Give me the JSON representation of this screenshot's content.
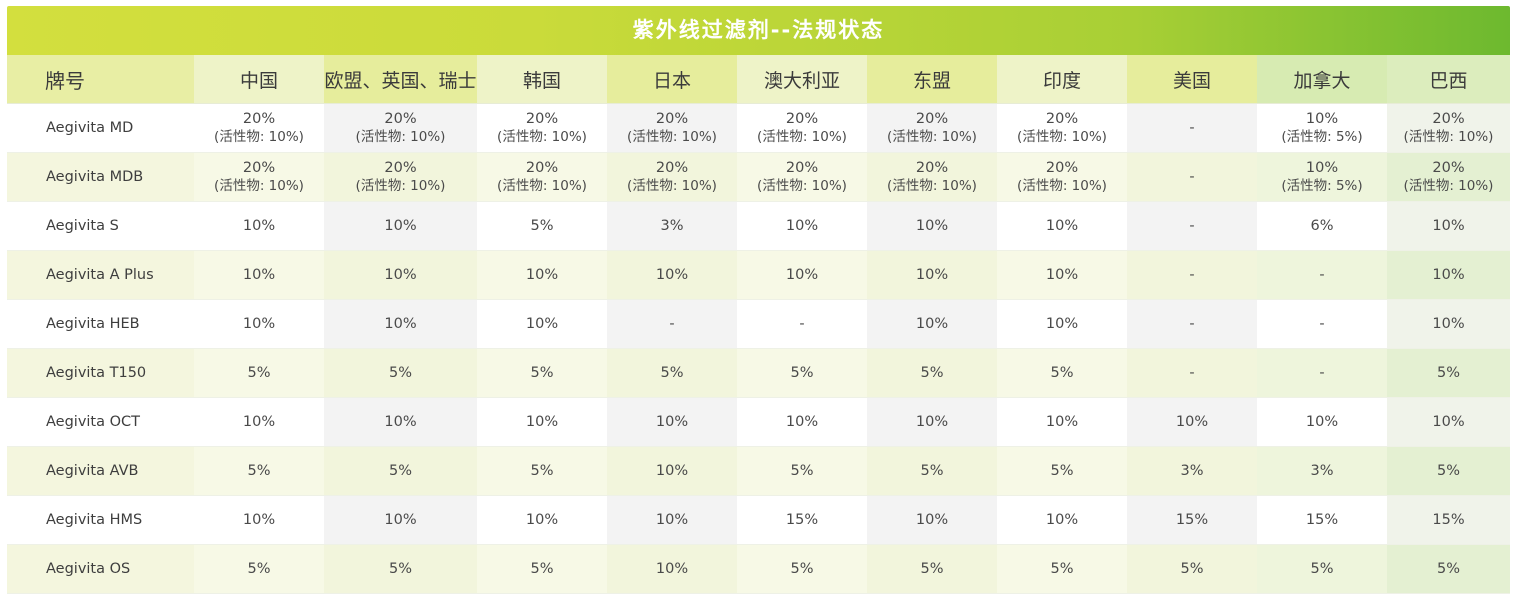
{
  "title": "紫外线过滤剂--法规状态",
  "columns": [
    "牌号",
    "中国",
    "欧盟、英国、瑞士",
    "韩国",
    "日本",
    "澳大利亚",
    "东盟",
    "印度",
    "美国",
    "加拿大",
    "巴西"
  ],
  "rows": [
    {
      "brand": "Aegivita MD",
      "cells": [
        {
          "v": "20%",
          "s": "(活性物: 10%)"
        },
        {
          "v": "20%",
          "s": "(活性物: 10%)"
        },
        {
          "v": "20%",
          "s": "(活性物: 10%)"
        },
        {
          "v": "20%",
          "s": "(活性物: 10%)"
        },
        {
          "v": "20%",
          "s": "(活性物: 10%)"
        },
        {
          "v": "20%",
          "s": "(活性物: 10%)"
        },
        {
          "v": "20%",
          "s": "(活性物: 10%)"
        },
        {
          "v": "-",
          "s": ""
        },
        {
          "v": "10%",
          "s": "(活性物: 5%)"
        },
        {
          "v": "20%",
          "s": "(活性物: 10%)"
        }
      ]
    },
    {
      "brand": "Aegivita MDB",
      "cells": [
        {
          "v": "20%",
          "s": "(活性物: 10%)"
        },
        {
          "v": "20%",
          "s": "(活性物: 10%)"
        },
        {
          "v": "20%",
          "s": "(活性物: 10%)"
        },
        {
          "v": "20%",
          "s": "(活性物: 10%)"
        },
        {
          "v": "20%",
          "s": "(活性物: 10%)"
        },
        {
          "v": "20%",
          "s": "(活性物: 10%)"
        },
        {
          "v": "20%",
          "s": "(活性物: 10%)"
        },
        {
          "v": "-",
          "s": ""
        },
        {
          "v": "10%",
          "s": "(活性物: 5%)"
        },
        {
          "v": "20%",
          "s": "(活性物: 10%)"
        }
      ]
    },
    {
      "brand": "Aegivita S",
      "cells": [
        {
          "v": "10%",
          "s": ""
        },
        {
          "v": "10%",
          "s": ""
        },
        {
          "v": "5%",
          "s": ""
        },
        {
          "v": "3%",
          "s": ""
        },
        {
          "v": "10%",
          "s": ""
        },
        {
          "v": "10%",
          "s": ""
        },
        {
          "v": "10%",
          "s": ""
        },
        {
          "v": "-",
          "s": ""
        },
        {
          "v": "6%",
          "s": ""
        },
        {
          "v": "10%",
          "s": ""
        }
      ]
    },
    {
      "brand": "Aegivita A Plus",
      "cells": [
        {
          "v": "10%",
          "s": ""
        },
        {
          "v": "10%",
          "s": ""
        },
        {
          "v": "10%",
          "s": ""
        },
        {
          "v": "10%",
          "s": ""
        },
        {
          "v": "10%",
          "s": ""
        },
        {
          "v": "10%",
          "s": ""
        },
        {
          "v": "10%",
          "s": ""
        },
        {
          "v": "-",
          "s": ""
        },
        {
          "v": "-",
          "s": ""
        },
        {
          "v": "10%",
          "s": ""
        }
      ]
    },
    {
      "brand": "Aegivita HEB",
      "cells": [
        {
          "v": "10%",
          "s": ""
        },
        {
          "v": "10%",
          "s": ""
        },
        {
          "v": "10%",
          "s": ""
        },
        {
          "v": "-",
          "s": ""
        },
        {
          "v": "-",
          "s": ""
        },
        {
          "v": "10%",
          "s": ""
        },
        {
          "v": "10%",
          "s": ""
        },
        {
          "v": "-",
          "s": ""
        },
        {
          "v": "-",
          "s": ""
        },
        {
          "v": "10%",
          "s": ""
        }
      ]
    },
    {
      "brand": "Aegivita T150",
      "cells": [
        {
          "v": "5%",
          "s": ""
        },
        {
          "v": "5%",
          "s": ""
        },
        {
          "v": "5%",
          "s": ""
        },
        {
          "v": "5%",
          "s": ""
        },
        {
          "v": "5%",
          "s": ""
        },
        {
          "v": "5%",
          "s": ""
        },
        {
          "v": "5%",
          "s": ""
        },
        {
          "v": "-",
          "s": ""
        },
        {
          "v": "-",
          "s": ""
        },
        {
          "v": "5%",
          "s": ""
        }
      ]
    },
    {
      "brand": "Aegivita OCT",
      "cells": [
        {
          "v": "10%",
          "s": ""
        },
        {
          "v": "10%",
          "s": ""
        },
        {
          "v": "10%",
          "s": ""
        },
        {
          "v": "10%",
          "s": ""
        },
        {
          "v": "10%",
          "s": ""
        },
        {
          "v": "10%",
          "s": ""
        },
        {
          "v": "10%",
          "s": ""
        },
        {
          "v": "10%",
          "s": ""
        },
        {
          "v": "10%",
          "s": ""
        },
        {
          "v": "10%",
          "s": ""
        }
      ]
    },
    {
      "brand": "Aegivita AVB",
      "cells": [
        {
          "v": "5%",
          "s": ""
        },
        {
          "v": "5%",
          "s": ""
        },
        {
          "v": "5%",
          "s": ""
        },
        {
          "v": "10%",
          "s": ""
        },
        {
          "v": "5%",
          "s": ""
        },
        {
          "v": "5%",
          "s": ""
        },
        {
          "v": "5%",
          "s": ""
        },
        {
          "v": "3%",
          "s": ""
        },
        {
          "v": "3%",
          "s": ""
        },
        {
          "v": "5%",
          "s": ""
        }
      ]
    },
    {
      "brand": "Aegivita HMS",
      "cells": [
        {
          "v": "10%",
          "s": ""
        },
        {
          "v": "10%",
          "s": ""
        },
        {
          "v": "10%",
          "s": ""
        },
        {
          "v": "10%",
          "s": ""
        },
        {
          "v": "15%",
          "s": ""
        },
        {
          "v": "10%",
          "s": ""
        },
        {
          "v": "10%",
          "s": ""
        },
        {
          "v": "15%",
          "s": ""
        },
        {
          "v": "15%",
          "s": ""
        },
        {
          "v": "15%",
          "s": ""
        }
      ]
    },
    {
      "brand": "Aegivita OS",
      "cells": [
        {
          "v": "5%",
          "s": ""
        },
        {
          "v": "5%",
          "s": ""
        },
        {
          "v": "5%",
          "s": ""
        },
        {
          "v": "10%",
          "s": ""
        },
        {
          "v": "5%",
          "s": ""
        },
        {
          "v": "5%",
          "s": ""
        },
        {
          "v": "5%",
          "s": ""
        },
        {
          "v": "5%",
          "s": ""
        },
        {
          "v": "5%",
          "s": ""
        },
        {
          "v": "5%",
          "s": ""
        }
      ]
    }
  ],
  "colors": {
    "title_start": "#d3df3e",
    "title_end": "#6db92f",
    "title_text": "#ffffff"
  }
}
